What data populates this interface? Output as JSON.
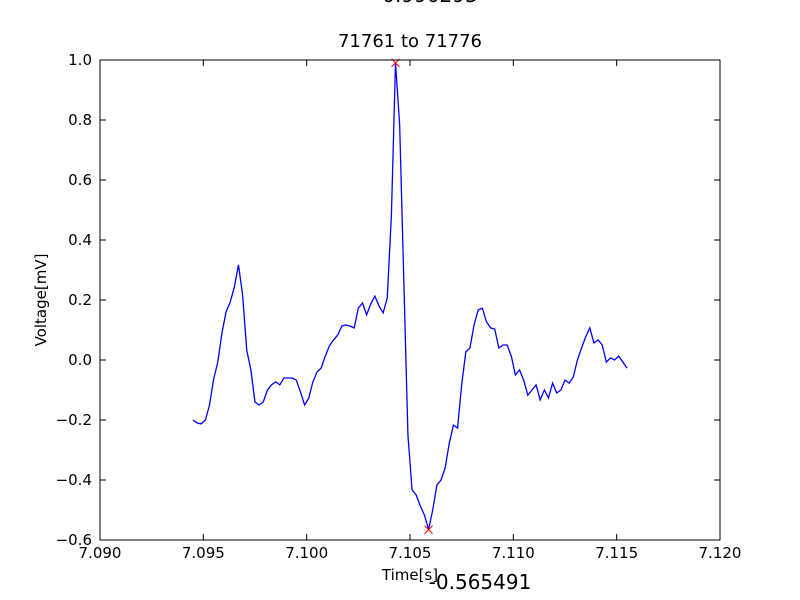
{
  "chart_data": {
    "type": "line",
    "title": "71761 to 71776",
    "xlabel": "Time[s]",
    "ylabel": "Voltage[mV]",
    "xlim": [
      7.09,
      7.12
    ],
    "ylim": [
      -0.6,
      1.0
    ],
    "xticks": [
      {
        "value": 7.09,
        "label": "7.090"
      },
      {
        "value": 7.095,
        "label": "7.095"
      },
      {
        "value": 7.1,
        "label": "7.100"
      },
      {
        "value": 7.105,
        "label": "7.105"
      },
      {
        "value": 7.11,
        "label": "7.110"
      },
      {
        "value": 7.115,
        "label": "7.115"
      },
      {
        "value": 7.12,
        "label": "7.120"
      }
    ],
    "yticks": [
      {
        "value": -0.6,
        "label": "−0.6"
      },
      {
        "value": -0.4,
        "label": "−0.4"
      },
      {
        "value": -0.2,
        "label": "−0.2"
      },
      {
        "value": 0,
        "label": "0.0"
      },
      {
        "value": 0.2,
        "label": "0.2"
      },
      {
        "value": 0.4,
        "label": "0.4"
      },
      {
        "value": 0.6,
        "label": "0.6"
      },
      {
        "value": 0.8,
        "label": "0.8"
      },
      {
        "value": 1.0,
        "label": "1.0"
      }
    ],
    "grid": false,
    "series": [
      {
        "color": "#0000ff",
        "x": [
          7.0945,
          7.0947,
          7.0949,
          7.0951,
          7.0953,
          7.0955,
          7.0957,
          7.0959,
          7.0961,
          7.0963,
          7.0965,
          7.0967,
          7.0969,
          7.0971,
          7.0973,
          7.0975,
          7.0977,
          7.0979,
          7.0981,
          7.0983,
          7.0985,
          7.0987,
          7.0989,
          7.0991,
          7.0993,
          7.0995,
          7.0997,
          7.0999,
          7.1001,
          7.1003,
          7.1005,
          7.1007,
          7.1009,
          7.1011,
          7.1013,
          7.1015,
          7.1017,
          7.1019,
          7.1021,
          7.1023,
          7.1025,
          7.1027,
          7.1029,
          7.1031,
          7.1033,
          7.1035,
          7.1037,
          7.1039,
          7.1041,
          7.1043,
          7.1045,
          7.1047,
          7.1049,
          7.1051,
          7.1053,
          7.1055,
          7.1057,
          7.1059,
          7.1061,
          7.1063,
          7.1065,
          7.1067,
          7.1069,
          7.1071,
          7.1073,
          7.1075,
          7.1077,
          7.1079,
          7.1081,
          7.1083,
          7.1085,
          7.1087,
          7.1089,
          7.1091,
          7.1093,
          7.1095,
          7.1097,
          7.1099,
          7.1101,
          7.1103,
          7.1105,
          7.1107,
          7.1109,
          7.1111,
          7.1113,
          7.1115,
          7.1117,
          7.1119,
          7.1121,
          7.1123,
          7.1125,
          7.1127,
          7.1129,
          7.1131,
          7.1133,
          7.1135,
          7.1137,
          7.1139,
          7.1141,
          7.1143,
          7.1145,
          7.1147,
          7.1149,
          7.1151,
          7.1153,
          7.1155
        ],
        "values": [
          -0.2,
          -0.21,
          -0.213,
          -0.2,
          -0.15,
          -0.063,
          -0.007,
          0.09,
          0.16,
          0.193,
          0.243,
          0.317,
          0.217,
          0.033,
          -0.033,
          -0.14,
          -0.15,
          -0.14,
          -0.1,
          -0.083,
          -0.073,
          -0.083,
          -0.06,
          -0.06,
          -0.06,
          -0.067,
          -0.107,
          -0.15,
          -0.127,
          -0.073,
          -0.04,
          -0.027,
          0.013,
          0.047,
          0.067,
          0.083,
          0.113,
          0.117,
          0.113,
          0.107,
          0.173,
          0.19,
          0.15,
          0.187,
          0.213,
          0.18,
          0.157,
          0.207,
          0.483,
          0.99,
          0.783,
          0.267,
          -0.25,
          -0.433,
          -0.45,
          -0.487,
          -0.517,
          -0.565,
          -0.5,
          -0.417,
          -0.4,
          -0.36,
          -0.277,
          -0.217,
          -0.227,
          -0.083,
          0.027,
          0.04,
          0.117,
          0.167,
          0.173,
          0.127,
          0.107,
          0.103,
          0.04,
          0.05,
          0.05,
          0.013,
          -0.05,
          -0.033,
          -0.067,
          -0.117,
          -0.1,
          -0.083,
          -0.133,
          -0.1,
          -0.127,
          -0.077,
          -0.11,
          -0.1,
          -0.067,
          -0.077,
          -0.057,
          0,
          0.04,
          0.077,
          0.107,
          0.057,
          0.067,
          0.05,
          -0.007,
          0.007,
          0,
          0.013,
          -0.007,
          -0.027
        ]
      }
    ],
    "markers": {
      "color": "#ff0000",
      "x": [
        7.1043,
        7.1059
      ],
      "values": [
        0.990293,
        -0.565491
      ]
    }
  }
}
